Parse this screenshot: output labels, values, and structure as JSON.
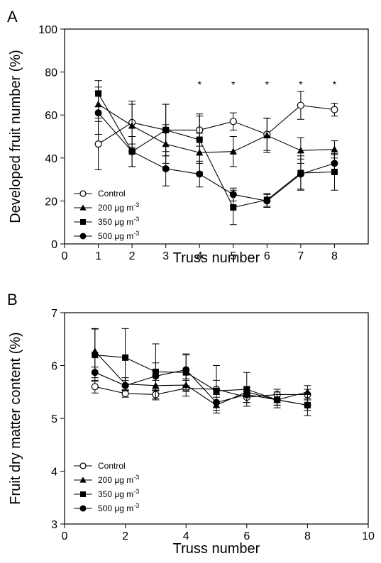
{
  "chart_data": [
    {
      "panel_label": "A",
      "type": "line",
      "xlabel": "Truss number",
      "ylabel": "Developed fruit number (%)",
      "xlim": [
        0,
        9
      ],
      "ylim": [
        0,
        100
      ],
      "xticks": [
        0,
        1,
        2,
        3,
        4,
        5,
        6,
        7,
        8
      ],
      "yticks": [
        0,
        20,
        40,
        60,
        80,
        100
      ],
      "x": [
        1,
        2,
        3,
        4,
        5,
        6,
        7,
        8
      ],
      "grid": false,
      "legend_position": "bottom-left",
      "significance_marker": "*",
      "significance_x": [
        4,
        5,
        6,
        7,
        8
      ],
      "series": [
        {
          "name": "Control",
          "marker": "open-circle",
          "values": [
            46.5,
            56.5,
            53,
            53,
            57,
            51,
            64.5,
            62.5
          ],
          "errors": [
            12,
            10,
            12,
            7.5,
            4,
            7.5,
            6.5,
            3
          ]
        },
        {
          "name": "200 μg m⁻³",
          "marker": "filled-triangle",
          "values": [
            65,
            55,
            46.5,
            42.5,
            43,
            50.5,
            43.5,
            44
          ],
          "errors": [
            8,
            10,
            9,
            9,
            7,
            8,
            6,
            4
          ]
        },
        {
          "name": "350 μg m⁻³",
          "marker": "filled-square",
          "values": [
            70,
            43,
            53,
            48.5,
            17,
            20.5,
            33,
            33.5
          ],
          "errors": [
            6,
            7,
            12,
            11,
            8,
            3,
            8,
            8.5
          ]
        },
        {
          "name": "500 μg m⁻³",
          "marker": "filled-circle",
          "values": [
            61,
            43,
            35,
            32.5,
            23,
            20,
            32.5,
            37.5
          ],
          "errors": [
            10,
            7,
            8,
            6,
            3,
            3,
            7,
            4
          ]
        }
      ]
    },
    {
      "panel_label": "B",
      "type": "line",
      "xlabel": "Truss number",
      "ylabel": "Fruit dry matter content (%)",
      "xlim": [
        0,
        10
      ],
      "ylim": [
        3,
        7
      ],
      "xticks": [
        0,
        2,
        4,
        6,
        8,
        10
      ],
      "yticks": [
        3,
        4,
        5,
        6,
        7
      ],
      "x": [
        1,
        2,
        3,
        4,
        5,
        6,
        7,
        8
      ],
      "grid": false,
      "legend_position": "bottom-left",
      "series": [
        {
          "name": "Control",
          "marker": "open-circle",
          "values": [
            5.6,
            5.47,
            5.45,
            5.57,
            5.55,
            5.4,
            5.45,
            5.45
          ],
          "errors": [
            0.12,
            0.07,
            0.08,
            0.15,
            0.45,
            0.1,
            0.1,
            0.1
          ]
        },
        {
          "name": "200 μg m⁻³",
          "marker": "filled-triangle",
          "values": [
            6.27,
            5.65,
            5.62,
            5.63,
            5.25,
            5.5,
            5.35,
            5.5
          ],
          "errors": [
            0.42,
            0.12,
            0.1,
            0.12,
            0.15,
            0.1,
            0.1,
            0.12
          ]
        },
        {
          "name": "350 μg m⁻³",
          "marker": "filled-square",
          "values": [
            6.2,
            6.15,
            5.88,
            5.87,
            5.52,
            5.55,
            5.35,
            5.25
          ],
          "errors": [
            0.5,
            0.55,
            0.53,
            0.33,
            0.2,
            0.32,
            0.15,
            0.2
          ]
        },
        {
          "name": "500 μg m⁻³",
          "marker": "filled-circle",
          "values": [
            5.87,
            5.62,
            5.8,
            5.92,
            5.3,
            5.45,
            5.35,
            5.25
          ],
          "errors": [
            0.1,
            0.1,
            0.25,
            0.3,
            0.15,
            0.15,
            0.1,
            0.1
          ]
        }
      ]
    }
  ]
}
